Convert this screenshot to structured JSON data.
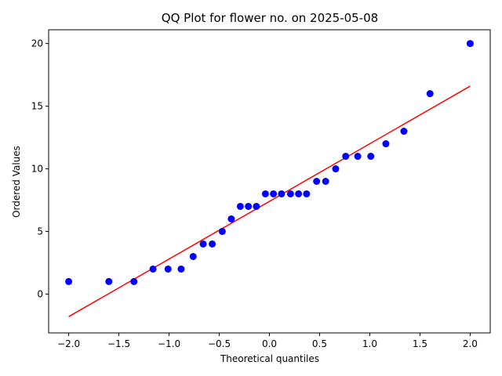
{
  "chart_data": {
    "type": "scatter",
    "title": "QQ Plot for flower no. on 2025-05-08",
    "xlabel": "Theoretical quantiles",
    "ylabel": "Ordered Values",
    "xlim": [
      -2.2,
      2.2
    ],
    "ylim": [
      -3.1,
      21.1
    ],
    "x_ticks": [
      -2.0,
      -1.5,
      -1.0,
      -0.5,
      0.0,
      0.5,
      1.0,
      1.5,
      2.0
    ],
    "x_tick_labels": [
      "−2.0",
      "−1.5",
      "−1.0",
      "−0.5",
      "0.0",
      "0.5",
      "1.0",
      "1.5",
      "2.0"
    ],
    "y_ticks": [
      0,
      5,
      10,
      15,
      20
    ],
    "y_tick_labels": [
      "0",
      "5",
      "10",
      "15",
      "20"
    ],
    "grid": false,
    "series": [
      {
        "kind": "points",
        "color": "#0000ff",
        "x": [
          -2.0,
          -1.6,
          -1.35,
          -1.16,
          -1.01,
          -0.88,
          -0.76,
          -0.66,
          -0.57,
          -0.47,
          -0.38,
          -0.29,
          -0.21,
          -0.13,
          -0.04,
          0.04,
          0.12,
          0.21,
          0.29,
          0.37,
          0.47,
          0.56,
          0.66,
          0.76,
          0.88,
          1.01,
          1.16,
          1.34,
          1.6,
          2.0
        ],
        "y": [
          1,
          1,
          1,
          2,
          2,
          2,
          3,
          4,
          4,
          5,
          6,
          7,
          7,
          7,
          8,
          8,
          8,
          8,
          8,
          8,
          9,
          9,
          10,
          11,
          11,
          11,
          12,
          13,
          16,
          20
        ]
      },
      {
        "kind": "fit-line",
        "color": "#ff0000",
        "x": [
          -2.0,
          2.0
        ],
        "y": [
          -1.8,
          16.6
        ]
      }
    ]
  }
}
